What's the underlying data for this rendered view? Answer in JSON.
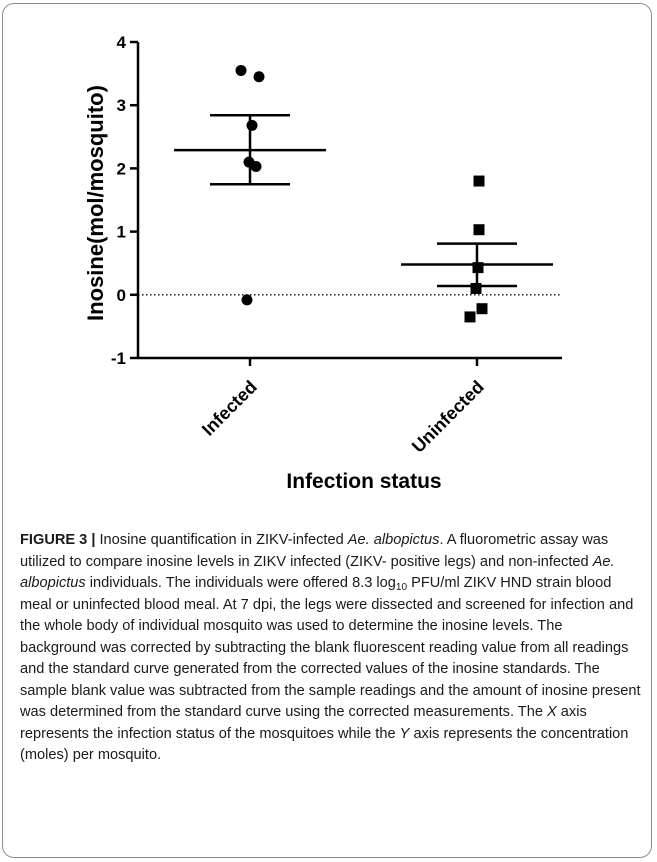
{
  "chart_data": {
    "type": "scatter",
    "title": "",
    "xlabel": "Infection status",
    "ylabel": "Inosine(mol/mosquito)",
    "ylim": [
      -1,
      4
    ],
    "yticks": [
      "-1",
      "0",
      "1",
      "2",
      "3",
      "4"
    ],
    "reference_line": 0,
    "categories": [
      "Infected",
      "Uninfected"
    ],
    "series": [
      {
        "category": "Infected",
        "marker": "circle",
        "values": [
          3.55,
          3.45,
          2.68,
          2.1,
          2.03,
          -0.08
        ],
        "mean": 2.29,
        "sem_upper": 2.84,
        "sem_lower": 1.75
      },
      {
        "category": "Uninfected",
        "marker": "square",
        "values": [
          1.8,
          1.03,
          0.43,
          0.1,
          -0.22,
          -0.35
        ],
        "mean": 0.48,
        "sem_upper": 0.81,
        "sem_lower": 0.14
      }
    ],
    "grid": false
  },
  "caption": {
    "label": "FIGURE 3 |",
    "seg1": " Inosine quantification in ZIKV-infected ",
    "species": "Ae. albopictus",
    "seg2": ". A fluorometric assay was utilized to compare inosine levels in ZIKV infected (ZIKV- positive legs) and non-infected ",
    "seg3": " individuals. The individuals were offered 8.3 log",
    "log_sub": "10",
    "seg4": " PFU/ml ZIKV HND strain blood meal or uninfected blood meal. At 7 dpi, the legs were dissected and screened for infection and the whole body of individual mosquito was used to determine the inosine levels. The background was corrected by subtracting the blank fluorescent reading value from all readings and the standard curve generated from the corrected values of the inosine standards. The sample blank value was subtracted from the sample readings and the amount of inosine present was determined from the standard curve using the corrected measurements. The ",
    "x_axis": "X",
    "seg5": " axis represents the infection status of the mosquitoes while the ",
    "y_axis": "Y",
    "seg6": " axis represents the concentration (moles) per mosquito."
  }
}
